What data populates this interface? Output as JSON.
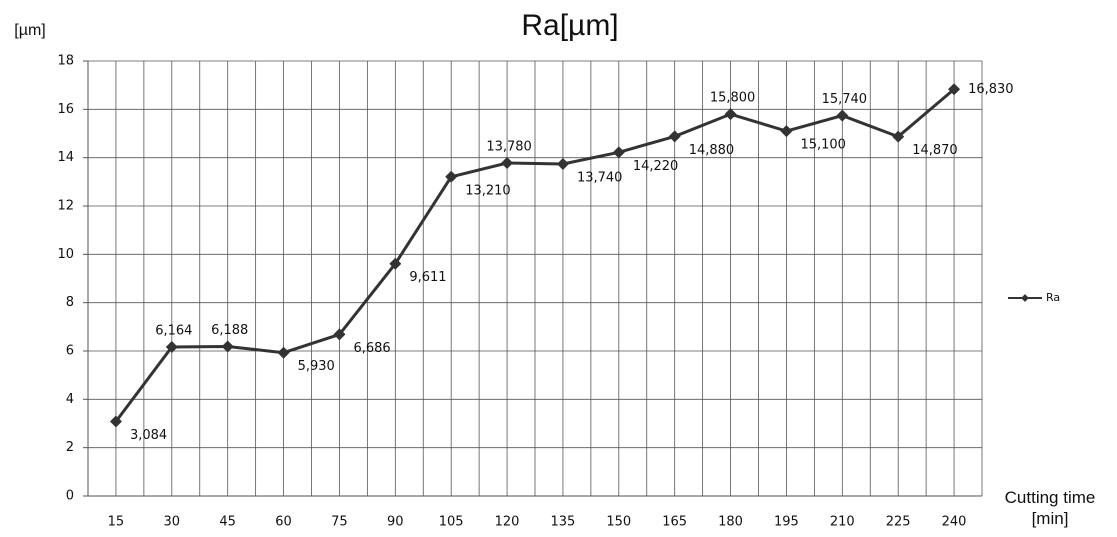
{
  "chart_data": {
    "type": "line",
    "title": "Ra[µm]",
    "y_label": "[µm]",
    "x_label": "Cutting time [min]",
    "categories": [
      "15",
      "30",
      "45",
      "60",
      "75",
      "90",
      "105",
      "120",
      "135",
      "150",
      "165",
      "180",
      "195",
      "210",
      "225",
      "240"
    ],
    "series": [
      {
        "name": "Ra",
        "color": "#333333",
        "values": [
          3.084,
          6.164,
          6.188,
          5.93,
          6.686,
          9.611,
          13.21,
          13.78,
          13.74,
          14.22,
          14.88,
          15.8,
          15.1,
          15.74,
          14.87,
          16.83
        ],
        "value_labels": [
          "3,084",
          "6,164",
          "6,188",
          "5,930",
          "6,686",
          "9,611",
          "13,210",
          "13,780",
          "13,740",
          "14,220",
          "14,880",
          "15,800",
          "15,100",
          "15,740",
          "14,870",
          "16,830"
        ]
      }
    ],
    "ylim": [
      0,
      18
    ],
    "yticks": [
      0,
      2,
      4,
      6,
      8,
      10,
      12,
      14,
      16,
      18
    ],
    "grid": true,
    "legend": "right"
  }
}
